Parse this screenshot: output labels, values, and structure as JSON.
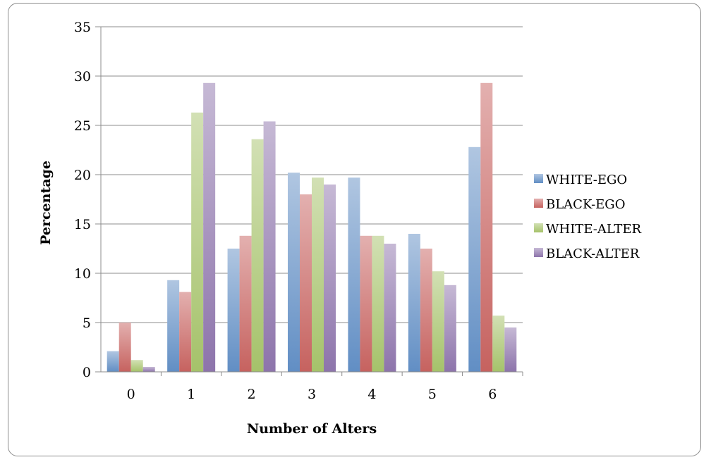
{
  "chart_data": {
    "type": "bar",
    "title": "",
    "xlabel": "Number of Alters",
    "ylabel": "Percentage",
    "categories": [
      "0",
      "1",
      "2",
      "3",
      "4",
      "5",
      "6"
    ],
    "ylim": [
      0,
      35
    ],
    "yticks": [
      "0",
      "5",
      "10",
      "15",
      "20",
      "25",
      "30",
      "35"
    ],
    "grid": "horizontal",
    "legend_position": "right",
    "series": [
      {
        "name": "WHITE-EGO",
        "color": "#4f81bd",
        "values": [
          2.1,
          9.3,
          12.5,
          20.2,
          19.7,
          14.0,
          22.8
        ]
      },
      {
        "name": "BLACK-EGO",
        "color": "#c0504d",
        "values": [
          5.0,
          8.1,
          13.8,
          18.0,
          13.8,
          12.5,
          29.3
        ]
      },
      {
        "name": "WHITE-ALTER",
        "color": "#9bbb59",
        "values": [
          1.2,
          26.3,
          23.6,
          19.7,
          13.8,
          10.2,
          5.7
        ]
      },
      {
        "name": "BLACK-ALTER",
        "color": "#8064a2",
        "values": [
          0.5,
          29.3,
          25.4,
          19.0,
          13.0,
          8.8,
          4.5
        ]
      }
    ]
  }
}
